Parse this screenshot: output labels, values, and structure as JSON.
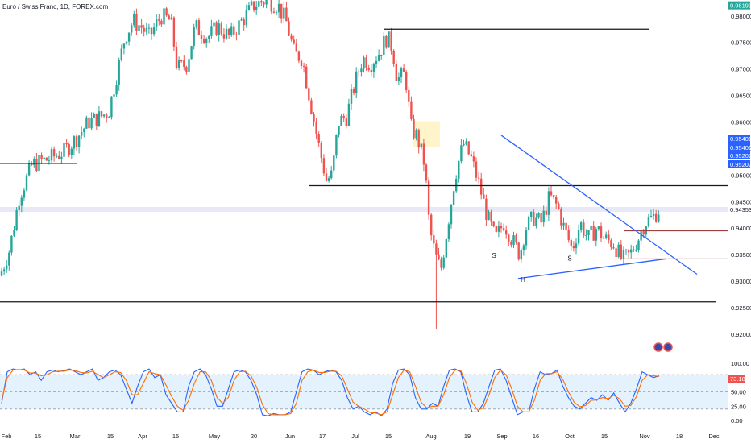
{
  "header": {
    "symbol_title": "Euro / Swiss Franc, 1D, FOREX.com"
  },
  "colors": {
    "up": "#26a69a",
    "down": "#ef5350",
    "trendline_black": "#131722",
    "trendline_blue": "#2962ff",
    "price_tag_green": "#26a69a",
    "price_tag_blue": "#2962ff",
    "price_tag_red": "#ef5350",
    "stoch_k": "#2962ff",
    "stoch_d": "#ff6d00",
    "stoch_band": "#e3f2fd",
    "highlight_zone": "#fff3c4"
  },
  "chart_data": [
    {
      "type": "candlestick",
      "ylim": [
        0.9165,
        0.983
      ],
      "y_ticks": [
        0.92,
        0.925,
        0.93,
        0.935,
        0.94,
        0.945,
        0.95,
        0.955,
        0.96,
        0.965,
        0.97,
        0.975,
        0.98
      ],
      "y_tick_labels": [
        "0.92000",
        "0.92500",
        "0.93000",
        "0.93500",
        "0.94000",
        "0.94500",
        "0.95000",
        "0.95500",
        "0.96000",
        "0.96500",
        "0.97000",
        "0.97500",
        "0.98000"
      ],
      "x_labels": [
        "Feb",
        "15",
        "Mar",
        "15",
        "Apr",
        "15",
        "May",
        "20",
        "Jun",
        "17",
        "Jul",
        "15",
        "Aug",
        "19",
        "Sep",
        "16",
        "Oct",
        "15",
        "Nov",
        "18",
        "Dec"
      ],
      "price_tags": [
        {
          "label": "0.98199",
          "value": 0.98199,
          "color": "green"
        },
        {
          "label": "0.95406",
          "value": 0.95406,
          "color": "blue"
        },
        {
          "label": "0.95406",
          "value": 0.95406,
          "color": "blue"
        },
        {
          "label": "0.95207",
          "value": 0.95207,
          "color": "blue"
        },
        {
          "label": "0.95207",
          "value": 0.95207,
          "color": "blue"
        },
        {
          "label": "0.94353",
          "value": 0.94353,
          "color": "plain"
        }
      ],
      "path_anchors": [
        [
          0,
          0.931
        ],
        [
          12,
          0.936
        ],
        [
          24,
          0.946
        ],
        [
          40,
          0.952
        ],
        [
          60,
          0.953
        ],
        [
          80,
          0.9545
        ],
        [
          95,
          0.957
        ],
        [
          110,
          0.96
        ],
        [
          125,
          0.961
        ],
        [
          135,
          0.962
        ],
        [
          145,
          0.969
        ],
        [
          155,
          0.976
        ],
        [
          165,
          0.979
        ],
        [
          175,
          0.978
        ],
        [
          185,
          0.976
        ],
        [
          200,
          0.98
        ],
        [
          212,
          0.979
        ],
        [
          220,
          0.97
        ],
        [
          232,
          0.971
        ],
        [
          242,
          0.978
        ],
        [
          258,
          0.976
        ],
        [
          270,
          0.978
        ],
        [
          285,
          0.976
        ],
        [
          300,
          0.979
        ],
        [
          315,
          0.982
        ],
        [
          330,
          0.983
        ],
        [
          345,
          0.982
        ],
        [
          355,
          0.979
        ],
        [
          365,
          0.973
        ],
        [
          375,
          0.972
        ],
        [
          385,
          0.964
        ],
        [
          395,
          0.956
        ],
        [
          405,
          0.949
        ],
        [
          412,
          0.95
        ],
        [
          420,
          0.96
        ],
        [
          430,
          0.961
        ],
        [
          440,
          0.967
        ],
        [
          450,
          0.972
        ],
        [
          460,
          0.971
        ],
        [
          470,
          0.973
        ],
        [
          480,
          0.976
        ],
        [
          487,
          0.974
        ],
        [
          493,
          0.968
        ],
        [
          503,
          0.969
        ],
        [
          510,
          0.959
        ],
        [
          518,
          0.957
        ],
        [
          527,
          0.952
        ],
        [
          533,
          0.94
        ],
        [
          540,
          0.935
        ],
        [
          547,
          0.932
        ],
        [
          555,
          0.94
        ],
        [
          565,
          0.95
        ],
        [
          575,
          0.956
        ],
        [
          585,
          0.953
        ],
        [
          595,
          0.948
        ],
        [
          605,
          0.942
        ],
        [
          615,
          0.938
        ],
        [
          625,
          0.941
        ],
        [
          635,
          0.938
        ],
        [
          645,
          0.935
        ],
        [
          652,
          0.94
        ],
        [
          662,
          0.942
        ],
        [
          672,
          0.941
        ],
        [
          682,
          0.946
        ],
        [
          692,
          0.944
        ],
        [
          700,
          0.94
        ],
        [
          710,
          0.936
        ],
        [
          720,
          0.941
        ],
        [
          730,
          0.938
        ],
        [
          740,
          0.94
        ],
        [
          750,
          0.938
        ],
        [
          762,
          0.937
        ],
        [
          772,
          0.934
        ],
        [
          782,
          0.935
        ],
        [
          792,
          0.938
        ],
        [
          800,
          0.941
        ],
        [
          810,
          0.942
        ],
        [
          818,
          0.9435
        ]
      ],
      "levels": [
        {
          "name": "level-0.9522",
          "value": 0.9522,
          "x_from_label": "Feb",
          "x_to_label": "Mar"
        },
        {
          "name": "level-0.9480",
          "value": 0.948,
          "x_from_label": "Jun",
          "x_to_label": "Dec"
        },
        {
          "name": "level-0.9775",
          "value": 0.9775,
          "x_from_label": "15",
          "x_to_label": "Nov"
        },
        {
          "name": "level-0.9261",
          "value": 0.9261,
          "x_from_label": "Feb",
          "x_to_label": "Nov"
        },
        {
          "name": "level-0.9395",
          "value": 0.9395,
          "x_from_label": "Nov",
          "x_to_label": "Nov"
        },
        {
          "name": "level-0.9342",
          "value": 0.9342,
          "x_from_label": "Nov",
          "x_to_label": "Nov"
        }
      ],
      "annotations": [
        {
          "name": "pattern-label-left-shoulder",
          "text": "S",
          "x_label": "Sep",
          "value": 0.935
        },
        {
          "name": "pattern-label-head",
          "text": "H",
          "x_label": "Sep",
          "value": 0.9305
        },
        {
          "name": "pattern-label-right-shoulder",
          "text": "S",
          "x_label": "Oct",
          "value": 0.9345
        }
      ],
      "wick_low": 0.921
    },
    {
      "type": "line",
      "indicator": "stochastic",
      "ylim": [
        0,
        100
      ],
      "y_ticks": [
        0,
        25,
        50,
        75,
        100
      ],
      "y_tick_labels": [
        "0.00",
        "25.00",
        "50.00",
        "",
        "100.00"
      ],
      "current_value_label": "73.18",
      "band": [
        20,
        80
      ],
      "series": [
        {
          "key": "k",
          "values": [
            30,
            85,
            90,
            88,
            90,
            80,
            85,
            70,
            85,
            88,
            85,
            87,
            90,
            85,
            80,
            85,
            90,
            70,
            75,
            85,
            88,
            80,
            55,
            30,
            60,
            85,
            90,
            75,
            80,
            45,
            30,
            15,
            15,
            60,
            85,
            90,
            80,
            55,
            25,
            25,
            55,
            85,
            88,
            85,
            70,
            45,
            10,
            8,
            12,
            10,
            10,
            15,
            50,
            85,
            90,
            88,
            80,
            85,
            88,
            85,
            70,
            40,
            20,
            25,
            15,
            10,
            15,
            8,
            20,
            65,
            88,
            90,
            80,
            40,
            20,
            20,
            30,
            25,
            60,
            88,
            90,
            85,
            45,
            15,
            15,
            30,
            60,
            88,
            90,
            70,
            40,
            10,
            15,
            15,
            55,
            85,
            80,
            82,
            88,
            60,
            40,
            25,
            20,
            30,
            40,
            35,
            45,
            35,
            48,
            30,
            15,
            30,
            55,
            85,
            80,
            75,
            78
          ]
        },
        {
          "key": "d",
          "values": [
            35,
            75,
            88,
            89,
            88,
            83,
            83,
            78,
            80,
            85,
            86,
            86,
            88,
            87,
            84,
            83,
            86,
            80,
            75,
            80,
            85,
            84,
            70,
            45,
            45,
            65,
            85,
            82,
            80,
            62,
            42,
            25,
            18,
            35,
            65,
            85,
            85,
            70,
            40,
            30,
            40,
            70,
            85,
            86,
            78,
            58,
            28,
            12,
            10,
            10,
            10,
            12,
            30,
            70,
            85,
            88,
            84,
            84,
            86,
            86,
            78,
            55,
            32,
            25,
            20,
            14,
            13,
            10,
            15,
            45,
            75,
            88,
            85,
            60,
            32,
            22,
            25,
            25,
            45,
            75,
            88,
            87,
            65,
            32,
            18,
            22,
            45,
            75,
            88,
            80,
            55,
            25,
            15,
            15,
            35,
            70,
            82,
            82,
            85,
            72,
            50,
            32,
            24,
            26,
            35,
            36,
            40,
            38,
            44,
            38,
            25,
            26,
            42,
            70,
            80,
            78,
            77
          ]
        }
      ]
    }
  ]
}
